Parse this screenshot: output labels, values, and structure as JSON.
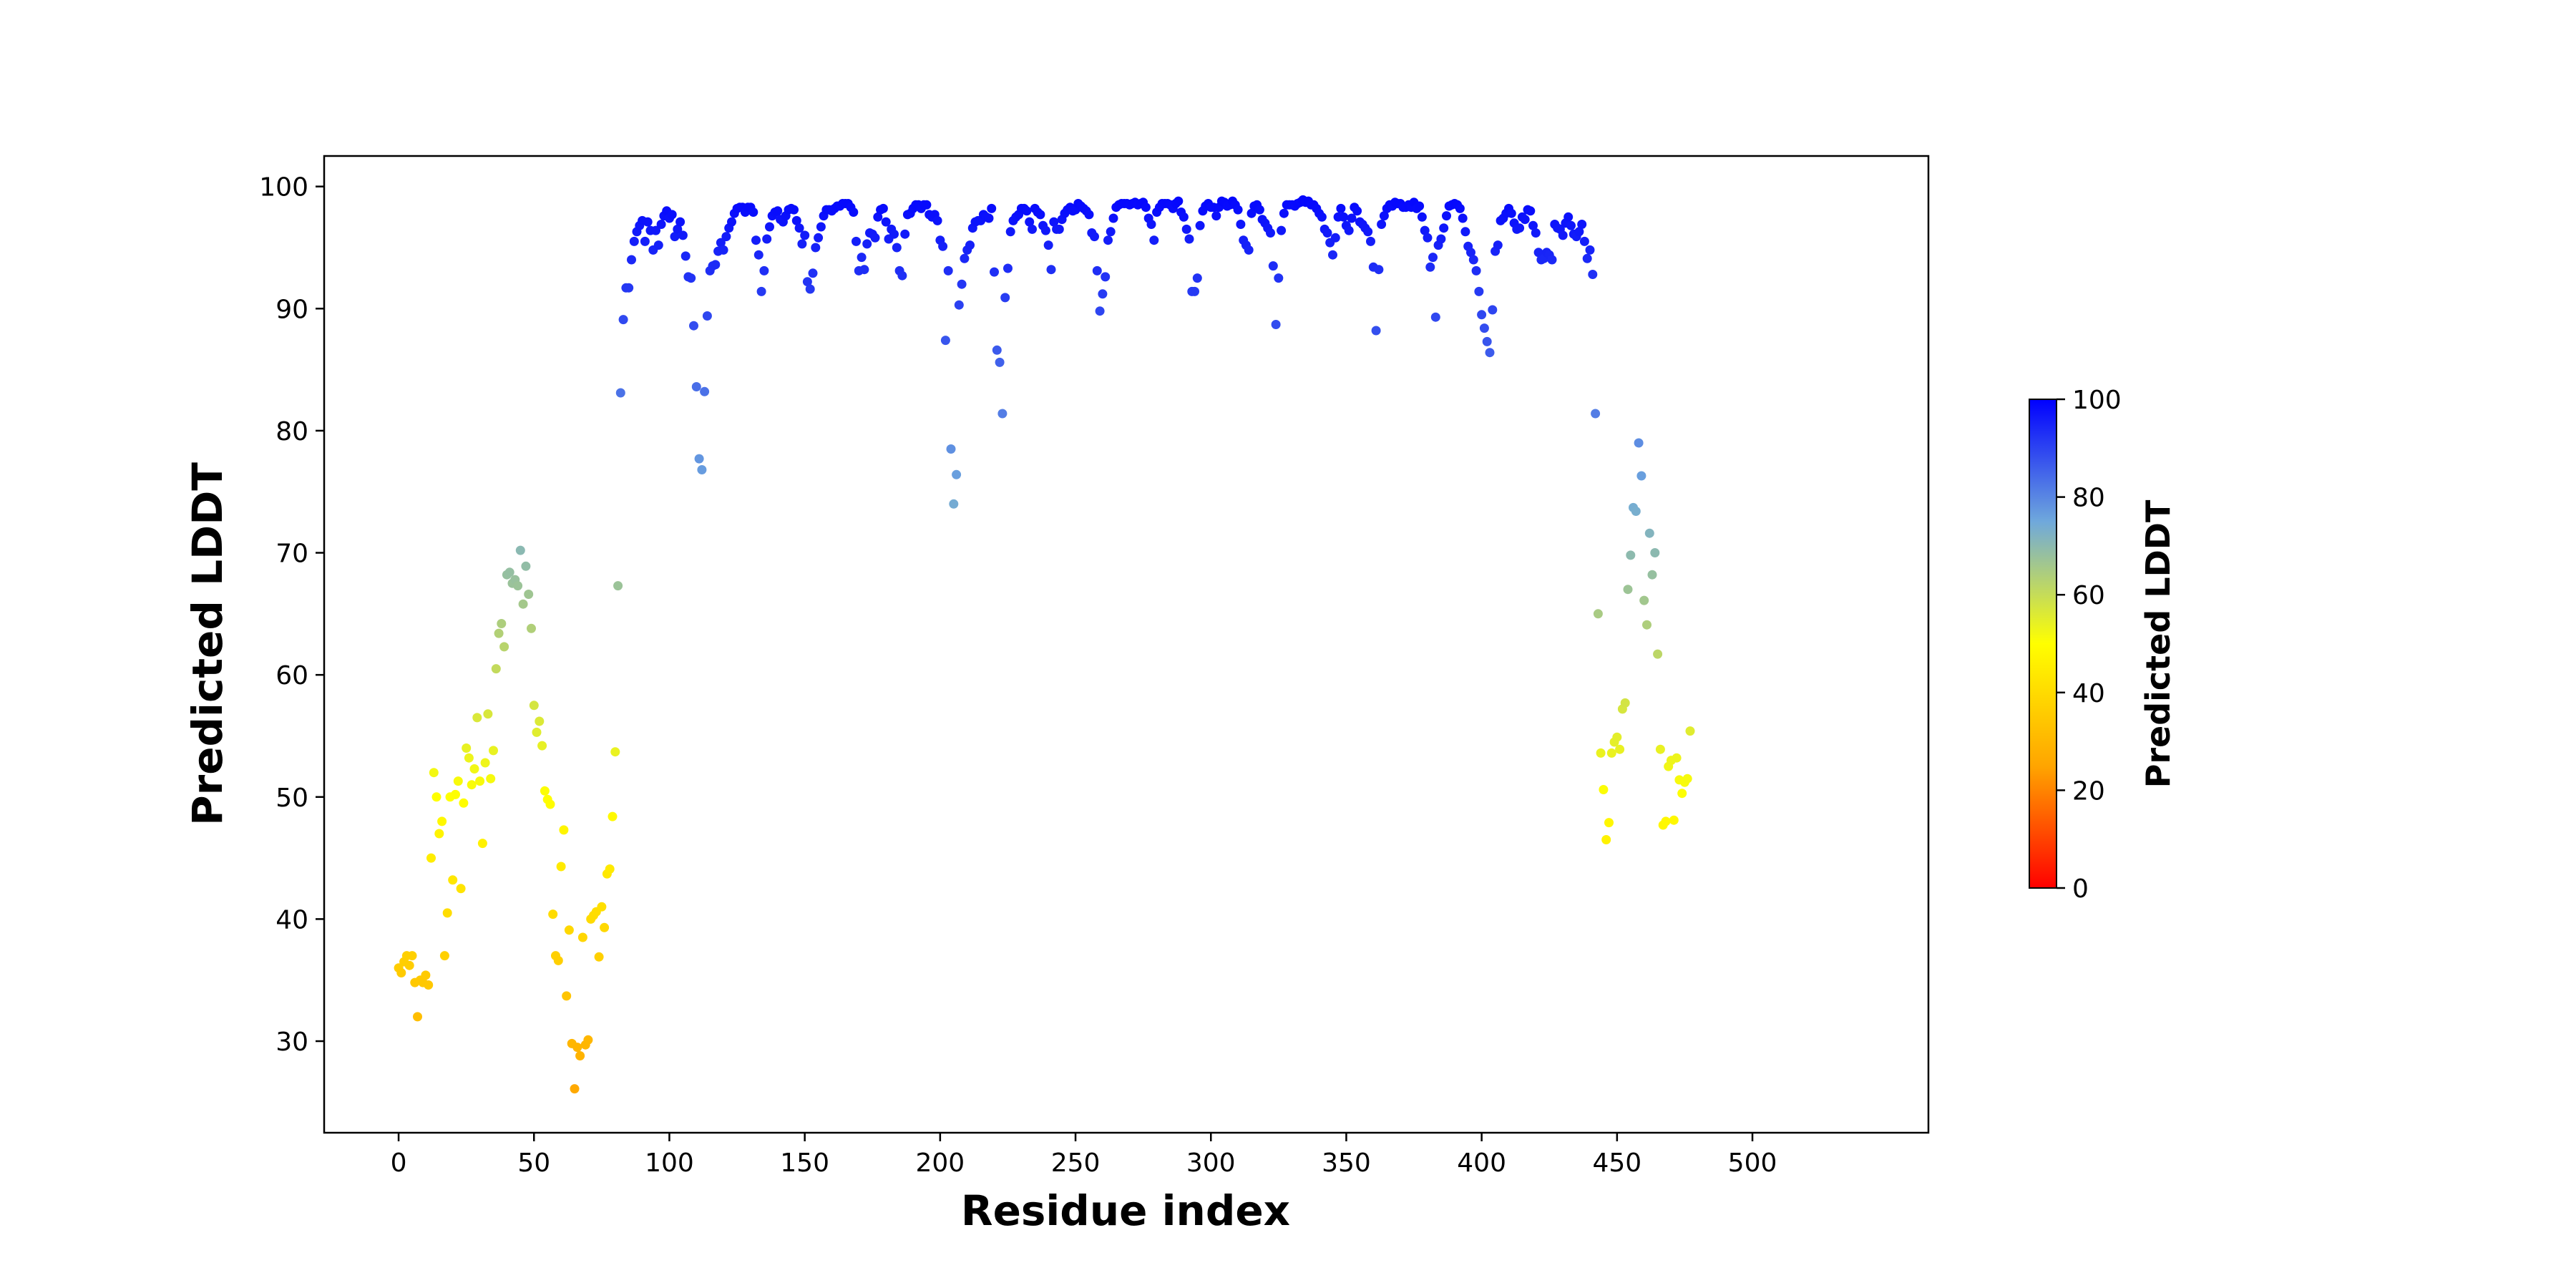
{
  "chart_data": {
    "type": "scatter",
    "title": "",
    "xlabel": "Residue index",
    "ylabel": "Predicted LDDT",
    "xlim": [
      -27.5,
      565
    ],
    "ylim": [
      22.5,
      102.5
    ],
    "xticks": [
      0,
      50,
      100,
      150,
      200,
      250,
      300,
      350,
      400,
      450,
      500
    ],
    "yticks": [
      30,
      40,
      50,
      60,
      70,
      80,
      90,
      100
    ],
    "grid": false,
    "colorbar": {
      "label": "Predicted LDDT",
      "range": [
        0,
        100
      ],
      "ticks": [
        0,
        20,
        40,
        60,
        80,
        100
      ],
      "colormap": [
        "#ff0000",
        "#ffa500",
        "#ffff00",
        "#6fa8dc",
        "#0000ff"
      ]
    },
    "y": [
      36,
      35.6,
      36.5,
      37,
      36.2,
      37,
      34.8,
      32,
      35,
      34.8,
      35.4,
      34.6,
      45,
      52,
      50,
      47,
      48,
      37,
      40.5,
      50,
      43.2,
      50.2,
      51.3,
      42.5,
      49.5,
      54,
      53.2,
      51,
      52.3,
      56.5,
      51.3,
      46.2,
      52.8,
      56.8,
      51.5,
      53.8,
      60.5,
      63.4,
      64.2,
      62.3,
      68.2,
      68.4,
      67.5,
      67.8,
      67.3,
      70.2,
      65.8,
      68.9,
      66.6,
      63.8,
      57.5,
      55.3,
      56.2,
      54.2,
      50.5,
      49.8,
      49.4,
      40.4,
      37,
      36.6,
      44.3,
      47.3,
      33.7,
      39.1,
      29.8,
      26.1,
      29.5,
      28.8,
      38.5,
      29.7,
      30.1,
      40,
      40.3,
      40.6,
      36.9,
      41,
      39.3,
      43.7,
      44.1,
      48.4,
      53.7,
      67.3,
      83.1,
      89.1,
      91.7,
      91.7,
      94,
      95.5,
      96.3,
      96.8,
      97.2,
      95.5,
      97.1,
      96.4,
      94.8,
      96.4,
      95.2,
      96.9,
      97.6,
      98,
      97.4,
      97.7,
      95.9,
      96.5,
      97.1,
      96,
      94.3,
      92.6,
      92.5,
      88.6,
      83.6,
      77.7,
      76.8,
      83.2,
      89.4,
      93.1,
      93.5,
      93.6,
      94.7,
      95.4,
      94.8,
      95.9,
      96.6,
      97.1,
      97.8,
      98.2,
      98.3,
      98.3,
      97.9,
      98.3,
      98.3,
      97.9,
      95.6,
      94.4,
      91.4,
      93.1,
      95.7,
      96.7,
      97.6,
      97.9,
      98,
      97.3,
      97.1,
      97.6,
      98.1,
      98.2,
      98.1,
      97.2,
      96.6,
      95.3,
      96,
      92.2,
      91.6,
      92.9,
      95,
      95.8,
      96.7,
      97.6,
      98.1,
      98.1,
      98,
      98.2,
      98.4,
      98.4,
      98.6,
      98.6,
      98.6,
      98.3,
      97.9,
      95.5,
      93.1,
      94.2,
      93.2,
      95.3,
      96.2,
      96.1,
      95.8,
      97.5,
      98.1,
      98.2,
      97.1,
      95.7,
      96.5,
      96.1,
      95,
      93.1,
      92.7,
      96.1,
      97.7,
      97.8,
      98.2,
      98.5,
      98.5,
      98.2,
      98.5,
      98.5,
      97.7,
      97.5,
      97.7,
      97.2,
      95.6,
      95.1,
      87.4,
      93.1,
      78.5,
      74,
      76.4,
      90.3,
      92,
      94.1,
      94.8,
      95.2,
      96.6,
      97.1,
      97.2,
      97.2,
      97.7,
      97.5,
      97.4,
      98.2,
      93,
      86.6,
      85.6,
      81.4,
      90.9,
      93.3,
      96.3,
      97.2,
      97.5,
      97.7,
      98.2,
      98.2,
      98,
      97.1,
      96.5,
      98.2,
      97.9,
      97.7,
      96.8,
      96.4,
      95.2,
      93.2,
      97.1,
      96.5,
      96.5,
      97.3,
      97.8,
      98.1,
      98.3,
      98,
      98.1,
      98.6,
      98.4,
      98.2,
      98,
      97.7,
      96.2,
      95.9,
      93.1,
      89.8,
      91.2,
      92.6,
      95.6,
      96.3,
      97.4,
      98.3,
      98.5,
      98.6,
      98.6,
      98.6,
      98.5,
      98.6,
      98.7,
      98.5,
      98.6,
      98.7,
      98.3,
      97.4,
      96.9,
      95.6,
      97.9,
      98.3,
      98.6,
      98.6,
      98.6,
      98.5,
      98.2,
      98.6,
      98.8,
      97.9,
      97.5,
      96.5,
      95.7,
      91.4,
      91.4,
      92.5,
      96.8,
      98,
      98.4,
      98.6,
      98.3,
      98.3,
      97.6,
      98.3,
      98.8,
      98.7,
      98.4,
      98.5,
      98.8,
      98.5,
      98.1,
      96.9,
      95.6,
      95.2,
      94.8,
      97.8,
      98.4,
      98.5,
      98.1,
      97.3,
      97,
      96.6,
      96.2,
      93.5,
      88.7,
      92.5,
      96.4,
      97.8,
      98.5,
      98.5,
      98.5,
      98.4,
      98.6,
      98.7,
      98.9,
      98.7,
      98.8,
      98.5,
      98.5,
      98.2,
      97.8,
      97.5,
      96.5,
      96.2,
      95.4,
      94.4,
      95.8,
      97.5,
      98.2,
      97.5,
      96.8,
      96.4,
      97.4,
      98.3,
      98,
      97.1,
      96.9,
      96.6,
      96.3,
      95.5,
      93.4,
      88.2,
      93.2,
      96.9,
      97.6,
      98.2,
      98.5,
      98.4,
      98.7,
      98.6,
      98.6,
      98.3,
      98.3,
      98.5,
      98.3,
      98.7,
      98.2,
      98.4,
      97.5,
      96.4,
      95.8,
      93.4,
      94.2,
      89.3,
      95.2,
      95.7,
      96.6,
      97.6,
      98.4,
      98.5,
      98.6,
      98.5,
      98.2,
      97.4,
      96.3,
      95.1,
      94.6,
      94,
      93.1,
      91.4,
      89.5,
      88.4,
      87.3,
      86.4,
      89.9,
      94.7,
      95.2,
      97.2,
      97.4,
      97.8,
      98.2,
      97.8,
      97,
      96.5,
      96.6,
      97.5,
      97.3,
      98.1,
      98,
      96.8,
      96.2,
      94.6,
      94,
      94.1,
      94.6,
      94.4,
      94,
      96.9,
      96.6,
      96.5,
      96,
      97,
      97.5,
      96.8,
      96.1,
      95.9,
      96.3,
      96.9,
      95.5,
      94.1,
      94.8,
      92.8,
      81.4,
      65,
      53.6,
      50.6,
      46.5,
      47.9,
      53.6,
      54.5,
      54.9,
      53.9,
      57.2,
      57.7,
      67,
      69.8,
      73.7,
      73.4,
      79,
      76.3,
      66.1,
      64.1,
      71.6,
      68.2,
      70,
      61.7,
      53.9,
      47.7,
      48,
      52.5,
      53,
      48.1,
      53.2,
      51.4,
      50.3,
      51.2,
      51.5,
      55.4
    ]
  }
}
